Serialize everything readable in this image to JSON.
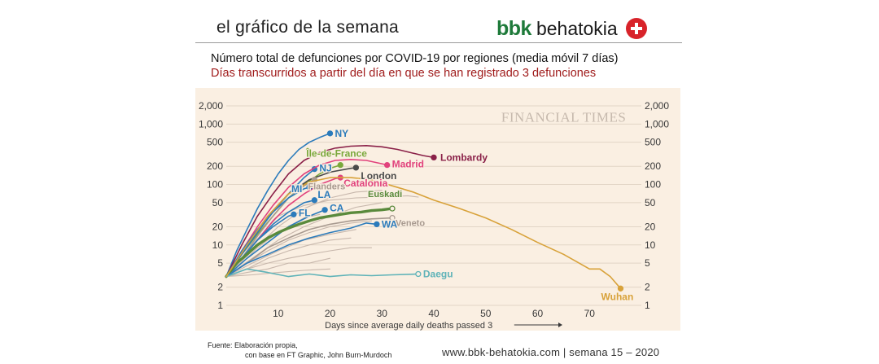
{
  "header": {
    "title": "el gráfico de la semana",
    "brand_bbk": "bbk",
    "brand_name": "behatokia"
  },
  "subtitle": {
    "line1": "Número total de defunciones por COVID-19 por regiones (media móvil 7 días)",
    "line2": "Días transcurridos a partir del día en que se han registrado 3 defunciones"
  },
  "footer": {
    "source_line1": "Fuente:  Elaboración propia,",
    "source_line2": "con base en FT Graphic, John Burn-Murdoch",
    "site": "www.bbk-behatokia.com | semana 15 – 2020"
  },
  "colors": {
    "background": "#faefe2",
    "grid": "#e2d5c6",
    "gray_series": "#c7b7ac",
    "blue": "#2b7bbb",
    "euskadi": "#5a8a3c"
  },
  "chart_data": {
    "type": "line",
    "watermark": "FINANCIAL TIMES",
    "xlabel": "Days since average daily deaths passed 3",
    "xlim": [
      0,
      80
    ],
    "ylim": [
      1,
      2000
    ],
    "y_scale": "log",
    "x_ticks": [
      10,
      20,
      30,
      40,
      50,
      60,
      70
    ],
    "x_tick_labels": [
      "10",
      "20",
      "30",
      "40",
      "50",
      "60",
      "70"
    ],
    "y_ticks": [
      1,
      2,
      5,
      10,
      20,
      50,
      100,
      200,
      500,
      1000,
      2000
    ],
    "y_tick_labels": [
      "1",
      "2",
      "5",
      "10",
      "20",
      "50",
      "100",
      "200",
      "500",
      "1,000",
      "2,000"
    ],
    "series": [
      {
        "name": "NY",
        "label": "NY",
        "color": "#2b7bbb",
        "end_marker": true,
        "x": [
          0,
          2,
          4,
          6,
          8,
          10,
          12,
          14,
          16,
          18,
          20
        ],
        "y": [
          3,
          8,
          18,
          40,
          80,
          150,
          250,
          380,
          500,
          600,
          700
        ]
      },
      {
        "name": "Île-de-France",
        "label": "Île-de-France",
        "color": "#7aa83c",
        "end_marker": true,
        "x": [
          0,
          3,
          6,
          9,
          12,
          15,
          18,
          20,
          22
        ],
        "y": [
          3,
          7,
          15,
          30,
          60,
          100,
          150,
          185,
          210
        ]
      },
      {
        "name": "NJ",
        "label": "NJ",
        "color": "#2b7bbb",
        "end_marker": true,
        "x": [
          0,
          3,
          6,
          9,
          12,
          15,
          17
        ],
        "y": [
          3,
          7,
          16,
          35,
          70,
          130,
          180
        ]
      },
      {
        "name": "London",
        "label": "London",
        "color": "#4a4a4a",
        "end_marker": true,
        "x": [
          0,
          4,
          8,
          12,
          16,
          20,
          24,
          25
        ],
        "y": [
          3,
          10,
          30,
          70,
          120,
          160,
          185,
          190
        ]
      },
      {
        "name": "Lombardy",
        "label": "Lombardy",
        "color": "#8a2048",
        "end_marker": true,
        "x": [
          0,
          3,
          6,
          9,
          12,
          15,
          18,
          21,
          24,
          27,
          30,
          33,
          36,
          38,
          40
        ],
        "y": [
          3,
          10,
          30,
          70,
          150,
          250,
          340,
          400,
          430,
          440,
          420,
          380,
          330,
          300,
          280
        ]
      },
      {
        "name": "Madrid",
        "label": "Madrid",
        "color": "#e1427c",
        "end_marker": true,
        "x": [
          0,
          3,
          6,
          9,
          12,
          15,
          18,
          21,
          24,
          27,
          30,
          31
        ],
        "y": [
          3,
          8,
          20,
          45,
          90,
          150,
          210,
          250,
          260,
          250,
          220,
          210
        ]
      },
      {
        "name": "Catalonia",
        "label": "Catalonia",
        "color": "#e1427c",
        "end_marker": true,
        "x": [
          0,
          3,
          6,
          9,
          12,
          15,
          18,
          21,
          22
        ],
        "y": [
          3,
          6,
          12,
          25,
          45,
          70,
          100,
          125,
          130
        ]
      },
      {
        "name": "Flanders",
        "label": "Flanders",
        "color": "#a89a90",
        "end_marker": true,
        "x": [
          0,
          3,
          6,
          9,
          12,
          15,
          17
        ],
        "y": [
          3,
          6,
          14,
          30,
          60,
          95,
          120
        ]
      },
      {
        "name": "MI",
        "label": "MI",
        "color": "#2b7bbb",
        "end_marker": true,
        "x": [
          0,
          3,
          6,
          9,
          12,
          15,
          16
        ],
        "y": [
          3,
          8,
          18,
          35,
          60,
          85,
          90
        ]
      },
      {
        "name": "LA",
        "label": "LA",
        "color": "#2b7bbb",
        "end_marker": true,
        "x": [
          0,
          3,
          6,
          9,
          12,
          15,
          17
        ],
        "y": [
          3,
          6,
          12,
          22,
          35,
          50,
          55
        ]
      },
      {
        "name": "CA",
        "label": "CA",
        "color": "#2b7bbb",
        "end_marker": true,
        "x": [
          0,
          4,
          8,
          12,
          16,
          19
        ],
        "y": [
          3,
          6,
          11,
          20,
          30,
          38
        ]
      },
      {
        "name": "FL",
        "label": "FL",
        "color": "#2b7bbb",
        "end_marker": true,
        "x": [
          0,
          3,
          6,
          9,
          12,
          13
        ],
        "y": [
          3,
          6,
          12,
          20,
          30,
          32
        ]
      },
      {
        "name": "Veneto",
        "label": "Veneto",
        "color": "#a89a90",
        "end_marker": true,
        "x": [
          0,
          4,
          8,
          12,
          16,
          20,
          24,
          28,
          32
        ],
        "y": [
          3,
          5,
          9,
          13,
          18,
          22,
          25,
          27,
          28
        ]
      },
      {
        "name": "Euskadi",
        "label": "Euskadi",
        "color": "#5a8a3c",
        "thick": true,
        "end_marker": true,
        "x": [
          0,
          2,
          4,
          6,
          8,
          10,
          12,
          14,
          16,
          18,
          20,
          22,
          24,
          26,
          28,
          30,
          32
        ],
        "y": [
          3,
          5,
          7,
          10,
          13,
          16,
          19,
          22,
          25,
          28,
          30,
          32,
          34,
          35,
          37,
          38,
          40
        ]
      },
      {
        "name": "WA",
        "label": "WA",
        "color": "#2b7bbb",
        "end_marker": true,
        "x": [
          0,
          4,
          8,
          12,
          16,
          20,
          24,
          27,
          29
        ],
        "y": [
          3,
          5,
          7,
          10,
          13,
          16,
          19,
          23,
          22
        ]
      },
      {
        "name": "Daegu",
        "label": "Daegu",
        "color": "#5fb3b8",
        "end_marker": true,
        "x": [
          0,
          4,
          8,
          12,
          16,
          20,
          24,
          28,
          32,
          37
        ],
        "y": [
          3,
          4,
          3.5,
          3,
          3.3,
          3,
          3.2,
          3.1,
          3.2,
          3.3
        ]
      },
      {
        "name": "Wuhan",
        "label": "Wuhan",
        "color": "#d8a23a",
        "end_marker": true,
        "x": [
          0,
          4,
          8,
          12,
          16,
          20,
          24,
          28,
          32,
          36,
          40,
          45,
          50,
          55,
          60,
          65,
          68,
          70,
          72,
          74,
          76
        ],
        "y": [
          3,
          10,
          30,
          70,
          110,
          130,
          130,
          120,
          95,
          75,
          55,
          40,
          28,
          18,
          11,
          7,
          5,
          4,
          4,
          3,
          1.9
        ]
      },
      {
        "name": "other-1",
        "label": "",
        "color": "#c7b7ac",
        "x": [
          0,
          5,
          10,
          15,
          20,
          25,
          30
        ],
        "y": [
          3,
          8,
          20,
          40,
          60,
          75,
          80
        ]
      },
      {
        "name": "other-2",
        "label": "",
        "color": "#c7b7ac",
        "x": [
          0,
          5,
          10,
          15,
          20,
          25,
          30
        ],
        "y": [
          3,
          6,
          12,
          20,
          30,
          42,
          50
        ]
      },
      {
        "name": "other-3",
        "label": "",
        "color": "#c7b7ac",
        "x": [
          0,
          5,
          10,
          15,
          20,
          25
        ],
        "y": [
          3,
          5,
          8,
          12,
          15,
          18
        ]
      },
      {
        "name": "other-4",
        "label": "",
        "color": "#c7b7ac",
        "x": [
          0,
          4,
          8,
          12,
          16,
          20,
          24
        ],
        "y": [
          3,
          4,
          6,
          8,
          10,
          12,
          13
        ]
      },
      {
        "name": "other-5",
        "label": "",
        "color": "#c7b7ac",
        "x": [
          0,
          4,
          8,
          12,
          16,
          20,
          24,
          28
        ],
        "y": [
          3,
          4,
          5,
          6,
          7,
          8,
          9,
          9
        ]
      },
      {
        "name": "other-6",
        "label": "",
        "color": "#c7b7ac",
        "x": [
          0,
          4,
          8,
          12,
          16,
          20
        ],
        "y": [
          3,
          3.5,
          4,
          5,
          5,
          6
        ]
      },
      {
        "name": "other-7",
        "label": "",
        "color": "#c7b7ac",
        "x": [
          0,
          5,
          10,
          15,
          20,
          25,
          30,
          35,
          37
        ],
        "y": [
          3,
          10,
          30,
          45,
          55,
          60,
          62,
          65,
          62
        ]
      },
      {
        "name": "other-8",
        "label": "",
        "color": "#c7b7ac",
        "x": [
          0,
          5,
          10,
          15,
          20
        ],
        "y": [
          3,
          3.2,
          3.5,
          3.8,
          4
        ]
      },
      {
        "name": "other-9",
        "label": "",
        "color": "#c7b7ac",
        "x": [
          0,
          4,
          8,
          12,
          16,
          20,
          24,
          28
        ],
        "y": [
          3,
          5,
          8,
          12,
          16,
          20,
          23,
          25
        ]
      },
      {
        "name": "other-10",
        "label": "",
        "color": "#c7b7ac",
        "x": [
          0,
          3,
          6,
          9,
          12,
          15,
          18
        ],
        "y": [
          3,
          5,
          9,
          14,
          20,
          28,
          32
        ]
      }
    ]
  }
}
